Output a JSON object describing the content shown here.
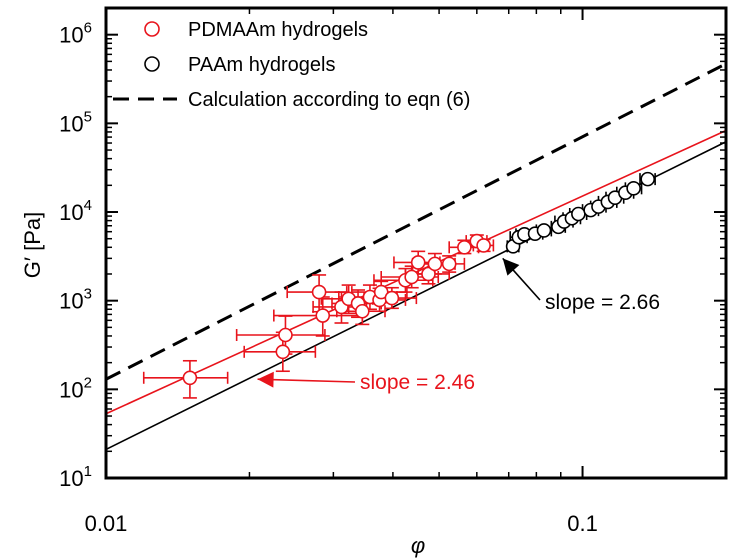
{
  "chart_data": {
    "type": "scatter",
    "xlabel": "φ",
    "ylabel": "G′ [Pa]",
    "xscale": "log",
    "yscale": "log",
    "xlim": [
      0.01,
      0.2
    ],
    "ylim": [
      10,
      2000000
    ],
    "x_ticks": [
      {
        "value": 0.01,
        "label": "0.01"
      },
      {
        "value": 0.1,
        "label": "0.1"
      }
    ],
    "y_ticks": [
      {
        "value": 10,
        "base": "10",
        "exp": "1"
      },
      {
        "value": 100,
        "base": "10",
        "exp": "2"
      },
      {
        "value": 1000,
        "base": "10",
        "exp": "3"
      },
      {
        "value": 10000,
        "base": "10",
        "exp": "4"
      },
      {
        "value": 100000,
        "base": "10",
        "exp": "5"
      },
      {
        "value": 1000000,
        "base": "10",
        "exp": "6"
      }
    ],
    "legend": {
      "position": "top-left",
      "entries": [
        {
          "label": "PDMAAm hydrogels",
          "marker": "circle",
          "color": "#e8141c"
        },
        {
          "label": "PAAm hydrogels",
          "marker": "circle",
          "color": "#000000"
        },
        {
          "label": "Calculation according to eqn (6)",
          "marker": "dashed-line",
          "color": "#000000"
        }
      ]
    },
    "series": [
      {
        "name": "PDMAAm hydrogels",
        "color": "#e8141c",
        "points": [
          {
            "x": 0.015,
            "y": 135,
            "xerr": 0.003,
            "yerr_lo": 80,
            "yerr_hi": 210
          },
          {
            "x": 0.0235,
            "y": 265,
            "xerr": 0.004,
            "yerr_lo": 160,
            "yerr_hi": 440
          },
          {
            "x": 0.0238,
            "y": 410,
            "xerr": 0.005,
            "yerr_lo": 250,
            "yerr_hi": 670
          },
          {
            "x": 0.0285,
            "y": 680,
            "xerr": 0.006,
            "yerr_lo": 400,
            "yerr_hi": 1100
          },
          {
            "x": 0.028,
            "y": 1250,
            "xerr": 0.004,
            "yerr_lo": 750,
            "yerr_hi": 1950
          },
          {
            "x": 0.0312,
            "y": 850,
            "xerr": 0.004,
            "yerr_lo": 560,
            "yerr_hi": 1250
          },
          {
            "x": 0.0323,
            "y": 1050,
            "xerr": 0.004,
            "yerr_lo": 720,
            "yerr_hi": 1500
          },
          {
            "x": 0.0338,
            "y": 930,
            "xerr": 0.004,
            "yerr_lo": 650,
            "yerr_hi": 1320
          },
          {
            "x": 0.0345,
            "y": 760,
            "xerr": 0.004,
            "yerr_lo": 540,
            "yerr_hi": 1080
          },
          {
            "x": 0.0358,
            "y": 1100,
            "xerr": 0.005,
            "yerr_lo": 800,
            "yerr_hi": 1500
          },
          {
            "x": 0.0375,
            "y": 1020,
            "xerr": 0.005,
            "yerr_lo": 760,
            "yerr_hi": 1380
          },
          {
            "x": 0.0378,
            "y": 1250,
            "xerr": 0.005,
            "yerr_lo": 950,
            "yerr_hi": 1650
          },
          {
            "x": 0.0398,
            "y": 1070,
            "xerr": 0.005,
            "yerr_lo": 820,
            "yerr_hi": 1400
          },
          {
            "x": 0.0425,
            "y": 1700,
            "xerr": 0.006,
            "yerr_lo": 1250,
            "yerr_hi": 2300
          },
          {
            "x": 0.0438,
            "y": 1850,
            "xerr": 0.006,
            "yerr_lo": 1400,
            "yerr_hi": 2450
          },
          {
            "x": 0.0452,
            "y": 2700,
            "xerr": 0.005,
            "yerr_lo": 2000,
            "yerr_hi": 3600
          },
          {
            "x": 0.0475,
            "y": 2000,
            "xerr": 0.005,
            "yerr_lo": 1550,
            "yerr_hi": 2600
          },
          {
            "x": 0.049,
            "y": 2600,
            "xerr": 0.005,
            "yerr_lo": 2000,
            "yerr_hi": 3400
          },
          {
            "x": 0.0525,
            "y": 2600,
            "xerr": 0.004,
            "yerr_lo": 2100,
            "yerr_hi": 3200
          },
          {
            "x": 0.0565,
            "y": 4000,
            "xerr": 0.004,
            "yerr_lo": 3400,
            "yerr_hi": 4800
          },
          {
            "x": 0.06,
            "y": 4700,
            "xerr": 0.003,
            "yerr_lo": 4000,
            "yerr_hi": 5500
          },
          {
            "x": 0.062,
            "y": 4200,
            "xerr": 0.003,
            "yerr_lo": 3600,
            "yerr_hi": 4900
          }
        ]
      },
      {
        "name": "PAAm hydrogels",
        "color": "#000000",
        "points": [
          {
            "x": 0.0715,
            "y": 4100,
            "xerr": 0.002
          },
          {
            "x": 0.0735,
            "y": 5200,
            "xerr": 0.003
          },
          {
            "x": 0.0755,
            "y": 5600,
            "xerr": 0.003
          },
          {
            "x": 0.0795,
            "y": 5700,
            "xerr": 0.003
          },
          {
            "x": 0.083,
            "y": 6200,
            "xerr": 0.003
          },
          {
            "x": 0.089,
            "y": 6800,
            "xerr": 0.003
          },
          {
            "x": 0.0915,
            "y": 7800,
            "xerr": 0.004
          },
          {
            "x": 0.095,
            "y": 8500,
            "xerr": 0.004
          },
          {
            "x": 0.098,
            "y": 9500,
            "xerr": 0.004
          },
          {
            "x": 0.104,
            "y": 10500,
            "xerr": 0.004
          },
          {
            "x": 0.108,
            "y": 11500,
            "xerr": 0.004
          },
          {
            "x": 0.113,
            "y": 13000,
            "xerr": 0.005
          },
          {
            "x": 0.117,
            "y": 14500,
            "xerr": 0.005
          },
          {
            "x": 0.123,
            "y": 16500,
            "xerr": 0.005
          },
          {
            "x": 0.128,
            "y": 18500,
            "xerr": 0.005
          },
          {
            "x": 0.137,
            "y": 23500,
            "xerr": 0.005
          }
        ]
      }
    ],
    "lines": [
      {
        "name": "PDMAAm fit",
        "style": "solid",
        "color": "#e8141c",
        "x": [
          0.01,
          0.2
        ],
        "y": [
          53,
          83000
        ]
      },
      {
        "name": "PAAm fit",
        "style": "solid",
        "color": "#000000",
        "x": [
          0.01,
          0.2
        ],
        "y": [
          21,
          62000
        ]
      },
      {
        "name": "Calculation according to eqn (6)",
        "style": "dashed",
        "color": "#000000",
        "x": [
          0.01,
          0.2
        ],
        "y": [
          130,
          470000
        ]
      }
    ],
    "annotations": [
      {
        "text": "slope = 2.66",
        "color": "#000000",
        "arrow_to": {
          "x": 0.068,
          "y": 3000
        }
      },
      {
        "text": "slope = 2.46",
        "color": "#e8141c",
        "arrow_to": {
          "x": 0.0208,
          "y": 130
        }
      }
    ]
  }
}
